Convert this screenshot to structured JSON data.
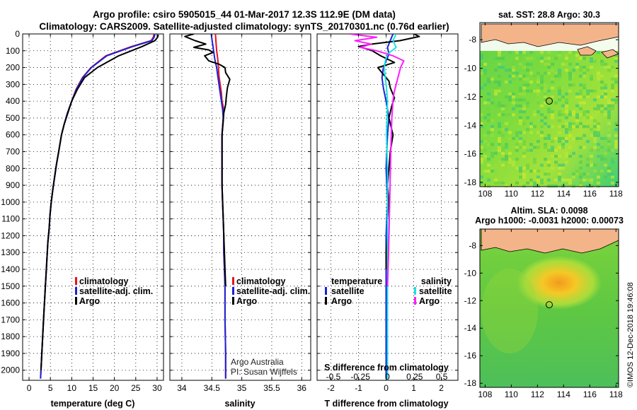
{
  "header": {
    "title_line1": "Argo profile: csiro 5905015_44 01-Mar-2017 12.3S 112.9E (DM data)",
    "title_line2": "Climatology: CARS2009. Satellite-adjusted climatology: synTS_20170301.nc (0.76d earlier)"
  },
  "colors": {
    "climatology": "#e8101c",
    "satellite": "#1a22d8",
    "argo": "#000000",
    "satellite_salinity": "#19e3e3",
    "argo_salinity_diff": "#ff1cff"
  },
  "depth_axis": {
    "ticks": [
      "0",
      "100",
      "200",
      "300",
      "400",
      "500",
      "600",
      "700",
      "800",
      "900",
      "1000",
      "1100",
      "1200",
      "1300",
      "1400",
      "1500",
      "1600",
      "1700",
      "1800",
      "1900",
      "2000"
    ],
    "range": [
      0,
      2060
    ],
    "inverted": true
  },
  "legend_main": {
    "items": [
      "climatology",
      "satellite-adj. clim.",
      "Argo"
    ]
  },
  "legend_diff": {
    "left_title": "temperature",
    "left_items": [
      "satellite",
      "Argo"
    ],
    "right_title": "salinity",
    "right_items": [
      "satellite",
      "Argo"
    ]
  },
  "credit": {
    "line1": "Argo Australia",
    "line2": "PI: Susan Wijffels"
  },
  "side_text": "©IMOS 12-Dec-2018 19:46:08",
  "maps": {
    "sst_title": "sat. SST: 28.8 Argo: 30.3",
    "sla_title1": "Altim. SLA: 0.0098",
    "sla_title2": "Argo h1000: -0.0031 h2000: 0.00073",
    "lat_ticks": [
      "-8",
      "-10",
      "-12",
      "-14",
      "-16",
      "-18"
    ],
    "lon_ticks": [
      "108",
      "110",
      "112",
      "114",
      "116",
      "118"
    ],
    "float_position": {
      "lon": 112.9,
      "lat": -12.3
    },
    "lon_range": [
      107.6,
      118.2
    ],
    "lat_range": [
      -18.3,
      -6.8
    ],
    "land_color": "#f4b48a"
  },
  "chart_data": [
    {
      "type": "line",
      "xlabel": "temperature (deg C)",
      "ylabel": "",
      "xlim": [
        -1.5,
        31.5
      ],
      "ylim": [
        2060,
        0
      ],
      "x_ticks": [
        "0",
        "5",
        "10",
        "15",
        "20",
        "25",
        "30"
      ],
      "series": [
        {
          "name": "climatology",
          "x": [
            29.3,
            29.1,
            28.6,
            24.0,
            18.0,
            14.5,
            12.5,
            11.0,
            10.0,
            9.0,
            8.2,
            7.6,
            7.2,
            6.8,
            6.4,
            6.0,
            5.6,
            5.2,
            4.9,
            4.7,
            4.4,
            4.2,
            4.0,
            3.8,
            3.6,
            3.4,
            3.2,
            3.0,
            2.8,
            2.7
          ],
          "y": [
            0,
            20,
            40,
            75,
            130,
            200,
            260,
            330,
            400,
            470,
            540,
            600,
            660,
            720,
            780,
            850,
            920,
            1000,
            1080,
            1160,
            1240,
            1330,
            1420,
            1510,
            1600,
            1700,
            1800,
            1900,
            2000,
            2050
          ]
        },
        {
          "name": "satellite-adj. clim.",
          "x": [
            29.5,
            29.3,
            28.8,
            24.3,
            18.2,
            14.6,
            12.6,
            11.1,
            10.0,
            9.0,
            8.2,
            7.6,
            7.2,
            6.8,
            6.4,
            6.0,
            5.6,
            5.2,
            4.9,
            4.7,
            4.4,
            4.2,
            4.0,
            3.8,
            3.6,
            3.4,
            3.2,
            3.0,
            2.8,
            2.7
          ],
          "y": [
            0,
            20,
            40,
            75,
            130,
            200,
            260,
            330,
            400,
            470,
            540,
            600,
            660,
            720,
            780,
            850,
            920,
            1000,
            1080,
            1160,
            1240,
            1330,
            1420,
            1510,
            1600,
            1700,
            1800,
            1900,
            2000,
            2050
          ]
        },
        {
          "name": "Argo",
          "x": [
            30.3,
            30.1,
            29.5,
            26.5,
            21.0,
            16.0,
            13.0,
            11.3,
            10.0,
            9.1,
            8.2,
            7.6,
            7.2,
            6.8,
            6.4,
            6.0,
            5.6,
            5.2,
            4.9,
            4.7,
            4.4,
            4.2,
            4.0,
            3.8,
            3.6,
            3.4,
            3.2,
            3.0,
            2.8
          ],
          "y": [
            5,
            20,
            40,
            75,
            130,
            200,
            260,
            330,
            400,
            470,
            540,
            600,
            660,
            720,
            780,
            850,
            920,
            1000,
            1080,
            1160,
            1240,
            1330,
            1420,
            1510,
            1600,
            1700,
            1800,
            1900,
            2000
          ]
        }
      ]
    },
    {
      "type": "line",
      "xlabel": "salinity",
      "ylabel": "",
      "xlim": [
        33.8,
        36.15
      ],
      "ylim": [
        2060,
        0
      ],
      "x_ticks": [
        "34",
        "34.5",
        "35",
        "35.5",
        "36"
      ],
      "series": [
        {
          "name": "climatology",
          "x": [
            34.56,
            34.57,
            34.58,
            34.6,
            34.61,
            34.62,
            34.64,
            34.66,
            34.67,
            34.7,
            34.69,
            34.67,
            34.67,
            34.67,
            34.67,
            34.68,
            34.69,
            34.7,
            34.7,
            34.71,
            34.72,
            34.72,
            34.73,
            34.73
          ],
          "y": [
            0,
            50,
            100,
            150,
            200,
            250,
            300,
            350,
            400,
            450,
            500,
            600,
            700,
            800,
            900,
            1000,
            1100,
            1200,
            1300,
            1400,
            1500,
            1700,
            1900,
            2050
          ]
        },
        {
          "name": "satellite-adj. clim.",
          "x": [
            34.49,
            34.51,
            34.53,
            34.55,
            34.58,
            34.6,
            34.62,
            34.64,
            34.66,
            34.68,
            34.69,
            34.67,
            34.67,
            34.67,
            34.67,
            34.68,
            34.69,
            34.7,
            34.7,
            34.71,
            34.72,
            34.72,
            34.73,
            34.73
          ],
          "y": [
            0,
            50,
            100,
            150,
            200,
            250,
            300,
            350,
            400,
            450,
            500,
            600,
            700,
            800,
            900,
            1000,
            1100,
            1200,
            1300,
            1400,
            1500,
            1700,
            1900,
            2050
          ]
        },
        {
          "name": "Argo",
          "x": [
            34.2,
            34.05,
            34.22,
            34.4,
            34.2,
            34.45,
            34.52,
            34.38,
            34.45,
            34.62,
            34.72,
            34.73,
            34.8,
            34.76,
            34.74,
            34.73,
            34.7,
            34.69,
            34.67,
            34.67,
            34.67,
            34.67,
            34.68,
            34.69,
            34.7,
            34.71,
            34.72,
            34.73
          ],
          "y": [
            0,
            15,
            40,
            60,
            80,
            95,
            110,
            130,
            160,
            180,
            200,
            230,
            270,
            320,
            380,
            420,
            470,
            520,
            600,
            700,
            800,
            900,
            1000,
            1100,
            1200,
            1300,
            1400,
            1500
          ]
        }
      ]
    },
    {
      "type": "line",
      "xlabel": "T difference from climatology",
      "ylabel": "",
      "xlim": [
        -2.5,
        2.6
      ],
      "ylim": [
        2060,
        0
      ],
      "x_ticks": [
        "-2",
        "-1",
        "0",
        "1",
        "2"
      ],
      "x2label": "S difference from climatology",
      "x2_ticks": [
        "-0.5",
        "-0.25",
        "0",
        "0.25",
        "0.5"
      ],
      "series": [
        {
          "name": "temperature satellite",
          "x": [
            0.25,
            0.15,
            0.05,
            0.1,
            0.0,
            -0.1,
            -0.15,
            -0.1,
            0.0,
            0.1,
            0.05,
            0.0,
            0.05,
            0.0,
            0.0,
            0.0,
            0.0,
            0.0
          ],
          "y": [
            0,
            40,
            80,
            120,
            160,
            200,
            260,
            320,
            400,
            500,
            600,
            800,
            1000,
            1200,
            1400,
            1600,
            1800,
            2050
          ]
        },
        {
          "name": "temperature Argo",
          "x": [
            1.0,
            1.2,
            0.5,
            -0.5,
            -1.0,
            -0.5,
            -0.2,
            0.3,
            -0.3,
            -0.1,
            0.1,
            0.15,
            0.3,
            0.2,
            0.1,
            0.25,
            0.15,
            0.1,
            0.05,
            0.1,
            0.05,
            0.05,
            0.0,
            0.0
          ],
          "y": [
            0,
            15,
            40,
            60,
            75,
            100,
            130,
            170,
            200,
            240,
            280,
            320,
            380,
            430,
            500,
            600,
            700,
            800,
            900,
            1000,
            1100,
            1200,
            1300,
            1400
          ]
        },
        {
          "name": "salinity satellite",
          "x": [
            0.08,
            0.05,
            0.08,
            0.0,
            -0.02,
            -0.03,
            -0.02,
            -0.01,
            0.0,
            -0.01,
            0.0,
            0.0,
            0.0,
            0.0
          ],
          "y": [
            0,
            40,
            80,
            120,
            160,
            200,
            260,
            320,
            400,
            600,
            800,
            1000,
            1500,
            2050
          ]
        },
        {
          "name": "salinity Argo",
          "x": [
            -0.35,
            -0.1,
            -0.3,
            -0.15,
            -0.25,
            -0.1,
            0.05,
            0.15,
            0.12,
            0.1,
            0.08,
            0.06,
            0.05,
            0.04,
            0.03,
            0.02,
            0.01,
            0.0
          ],
          "y": [
            0,
            20,
            40,
            60,
            80,
            100,
            130,
            160,
            200,
            250,
            300,
            350,
            400,
            500,
            700,
            1000,
            1300,
            1500
          ]
        }
      ]
    }
  ]
}
